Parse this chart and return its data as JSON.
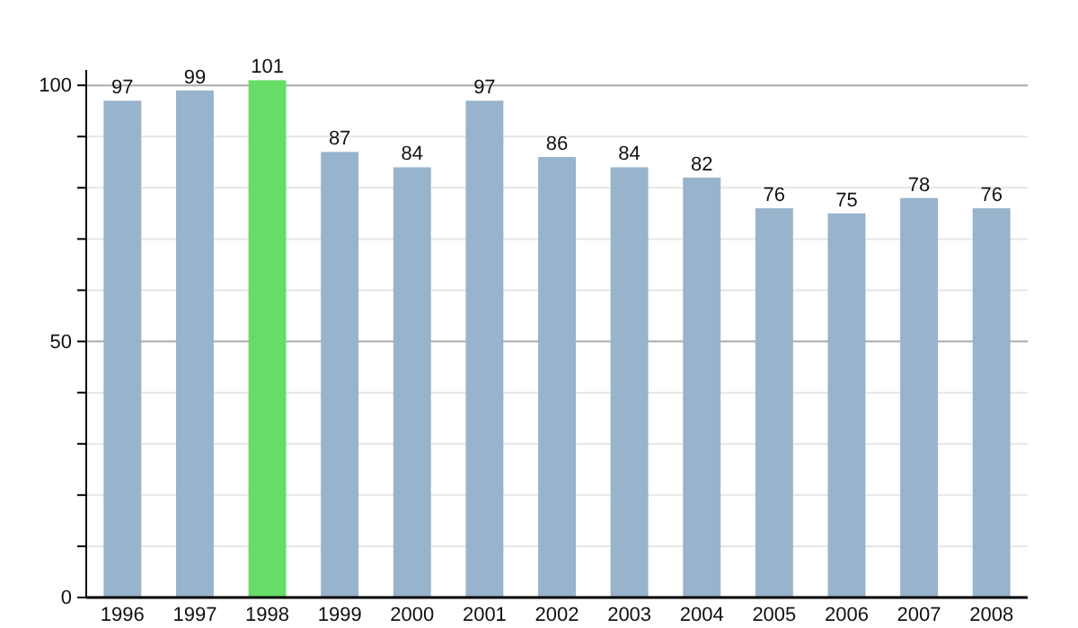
{
  "chart_data": {
    "type": "bar",
    "categories": [
      "1996",
      "1997",
      "1998",
      "1999",
      "2000",
      "2001",
      "2002",
      "2003",
      "2004",
      "2005",
      "2006",
      "2007",
      "2008"
    ],
    "values": [
      97,
      99,
      101,
      87,
      84,
      97,
      86,
      84,
      82,
      76,
      75,
      78,
      76
    ],
    "colors": [
      "#98b3cc",
      "#98b3cc",
      "#66dd66",
      "#98b3cc",
      "#98b3cc",
      "#98b3cc",
      "#98b3cc",
      "#98b3cc",
      "#98b3cc",
      "#98b3cc",
      "#98b3cc",
      "#98b3cc",
      "#98b3cc"
    ],
    "ylim": [
      0,
      103
    ],
    "yticks": [
      0,
      {
        "value": 10,
        "label": null
      },
      {
        "value": 20,
        "label": null
      },
      {
        "value": 30,
        "label": null
      },
      {
        "value": 40,
        "label": null
      },
      50,
      {
        "value": 60,
        "label": null
      },
      {
        "value": 70,
        "label": null
      },
      {
        "value": 80,
        "label": null
      },
      {
        "value": 90,
        "label": null
      },
      100
    ],
    "grid": true,
    "data_labels": true
  }
}
